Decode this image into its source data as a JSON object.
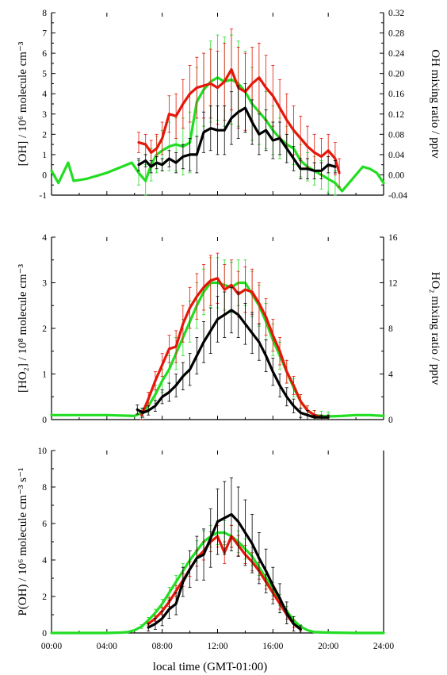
{
  "figure": {
    "xlabel": "local time (GMT-01:00)",
    "x_tick_labels": [
      "00:00",
      "04:00",
      "08:00",
      "12:00",
      "16:00",
      "20:00",
      "24:00"
    ],
    "colors": {
      "black": "#000000",
      "red": "#e3170a",
      "green": "#22dd22"
    }
  },
  "chart_data": [
    {
      "type": "line",
      "panel": "OH",
      "ylabel_left": "[OH] / 10⁶ molecule cm⁻³",
      "ylabel_right": "OH mixing ratio / pptv",
      "xlim": [
        0,
        24
      ],
      "ylim": [
        -1,
        8
      ],
      "y_ticks": [
        -1,
        0,
        1,
        2,
        3,
        4,
        5,
        6,
        7,
        8
      ],
      "y2lim": [
        -0.04,
        0.32
      ],
      "y2_ticks": [
        "-0.04",
        "0.00",
        "0.04",
        "0.08",
        "0.12",
        "0.16",
        "0.20",
        "0.24",
        "0.28",
        "0.32"
      ],
      "series": [
        {
          "color": "#22dd22",
          "x": [
            0,
            0.5,
            1.2,
            1.6,
            2.5,
            4,
            5.8,
            6.3,
            6.8,
            7.2,
            7.6,
            8,
            8.5,
            9,
            9.5,
            10,
            10.5,
            11,
            11.5,
            12,
            12.5,
            13,
            13.5,
            14,
            14.5,
            15,
            15.5,
            16,
            16.5,
            17,
            17.5,
            18,
            18.5,
            19,
            19.5,
            20,
            20.5,
            21,
            21.5,
            22,
            22.5,
            23,
            23.5,
            24
          ],
          "y": [
            0.2,
            -0.4,
            0.6,
            -0.3,
            -0.2,
            0.1,
            0.6,
            0.1,
            -0.3,
            0.5,
            1.0,
            1.2,
            1.4,
            1.5,
            1.4,
            1.6,
            3.6,
            4.2,
            4.6,
            4.8,
            4.6,
            4.7,
            4.5,
            4.1,
            3.5,
            3.1,
            2.7,
            2.2,
            1.8,
            1.5,
            1.3,
            0.7,
            0.4,
            0.2,
            0.0,
            -0.2,
            -0.4,
            -0.8,
            -0.4,
            0.0,
            0.4,
            0.3,
            0.1,
            -0.4
          ],
          "errors": [
            0,
            0,
            0,
            0,
            0,
            0,
            0,
            0.6,
            0.8,
            0.8,
            0.9,
            1.0,
            1.2,
            1.3,
            1.4,
            1.5,
            1.7,
            1.8,
            2.0,
            2.1,
            2.2,
            2.2,
            2.1,
            2.0,
            1.8,
            1.6,
            1.4,
            1.2,
            1.0,
            0.9,
            0.8,
            0.8,
            0.7,
            0.7,
            0.7,
            0.7,
            0.6,
            0,
            0,
            0,
            0,
            0,
            0,
            0
          ]
        },
        {
          "color": "#e3170a",
          "x": [
            6.3,
            6.8,
            7.2,
            7.6,
            8,
            8.5,
            9,
            9.5,
            10,
            10.5,
            11,
            11.5,
            12,
            12.5,
            13,
            13.5,
            14,
            14.5,
            15,
            15.5,
            16,
            16.5,
            17,
            17.5,
            18,
            18.5,
            19,
            19.5,
            20,
            20.5,
            20.8
          ],
          "y": [
            1.6,
            1.5,
            1.1,
            1.3,
            1.8,
            3.0,
            2.9,
            3.5,
            4.0,
            4.3,
            4.4,
            4.5,
            4.3,
            4.6,
            5.2,
            4.3,
            4.1,
            4.5,
            4.8,
            4.3,
            3.9,
            3.3,
            2.7,
            2.2,
            1.8,
            1.4,
            1.1,
            0.9,
            1.2,
            0.8,
            0.1
          ],
          "errors": [
            0.5,
            0.5,
            0.6,
            0.7,
            0.8,
            0.9,
            1.1,
            1.2,
            1.4,
            1.5,
            1.6,
            1.7,
            1.8,
            1.9,
            2.0,
            2.0,
            1.9,
            1.8,
            1.7,
            1.6,
            1.5,
            1.4,
            1.3,
            1.2,
            1.1,
            1.0,
            0.9,
            0.9,
            0.8,
            0.8,
            0.7
          ]
        },
        {
          "color": "#000000",
          "x": [
            6.3,
            6.8,
            7.2,
            7.6,
            8,
            8.5,
            9,
            9.5,
            10,
            10.5,
            11,
            11.5,
            12,
            12.5,
            13,
            13.5,
            14,
            14.5,
            15,
            15.5,
            16,
            16.5,
            17,
            17.5,
            18,
            18.5,
            19,
            19.5,
            20,
            20.5
          ],
          "y": [
            0.5,
            0.7,
            0.4,
            0.6,
            0.5,
            0.8,
            0.6,
            0.9,
            1.0,
            1.0,
            2.1,
            2.3,
            2.2,
            2.2,
            2.8,
            3.1,
            3.3,
            2.6,
            2.0,
            2.2,
            1.7,
            1.8,
            1.3,
            0.8,
            0.3,
            0.3,
            0.2,
            0.2,
            0.5,
            0.4
          ],
          "errors": [
            0.3,
            0.3,
            0.3,
            0.3,
            0.3,
            0.4,
            0.5,
            0.6,
            0.8,
            0.9,
            1.0,
            1.1,
            1.2,
            1.2,
            1.3,
            1.3,
            1.2,
            1.1,
            1.0,
            1.0,
            0.9,
            0.8,
            0.7,
            0.6,
            0.5,
            0.5,
            0.4,
            0.4,
            0.4,
            0.3
          ]
        }
      ]
    },
    {
      "type": "line",
      "panel": "HO2",
      "ylabel_left": "[HO₂] / 10⁸ molecule cm⁻³",
      "ylabel_right": "HO₂ mixing ratio / pptv",
      "xlim": [
        0,
        24
      ],
      "ylim": [
        0,
        4
      ],
      "y_ticks": [
        0,
        1,
        2,
        3,
        4
      ],
      "y2lim": [
        0,
        16
      ],
      "y2_ticks": [
        "0",
        "4",
        "8",
        "12",
        "16"
      ],
      "series": [
        {
          "color": "#22dd22",
          "x": [
            0,
            2,
            4,
            6,
            6.5,
            7,
            7.5,
            8,
            8.5,
            9,
            9.5,
            10,
            10.5,
            11,
            11.5,
            12,
            12.5,
            13,
            13.5,
            14,
            14.5,
            15,
            15.5,
            16,
            16.5,
            17,
            17.5,
            18,
            18.5,
            19,
            19.5,
            20,
            21,
            22,
            23,
            24
          ],
          "y": [
            0.1,
            0.1,
            0.1,
            0.08,
            0.15,
            0.3,
            0.55,
            0.85,
            1.1,
            1.45,
            1.8,
            2.15,
            2.5,
            2.8,
            3.0,
            3.0,
            2.95,
            2.9,
            3.0,
            3.0,
            2.75,
            2.5,
            2.15,
            1.75,
            1.4,
            1.05,
            0.7,
            0.4,
            0.2,
            0.1,
            0.08,
            0.07,
            0.08,
            0.1,
            0.1,
            0.08
          ],
          "errors": [
            0,
            0,
            0,
            0,
            0.1,
            0.15,
            0.2,
            0.25,
            0.3,
            0.35,
            0.4,
            0.45,
            0.5,
            0.5,
            0.55,
            0.55,
            0.55,
            0.55,
            0.5,
            0.5,
            0.5,
            0.45,
            0.4,
            0.35,
            0.3,
            0.25,
            0.2,
            0.15,
            0.1,
            0.1,
            0.1,
            0.1,
            0,
            0,
            0,
            0
          ]
        },
        {
          "color": "#e3170a",
          "x": [
            6.5,
            7,
            7.5,
            8,
            8.5,
            9,
            9.5,
            10,
            10.5,
            11,
            11.5,
            12,
            12.5,
            13,
            13.5,
            14,
            14.5,
            15,
            15.5,
            16,
            16.5,
            17,
            17.5,
            18,
            18.5,
            19,
            19.5,
            20
          ],
          "y": [
            0.1,
            0.45,
            0.85,
            1.2,
            1.55,
            1.6,
            2.1,
            2.45,
            2.7,
            2.9,
            3.05,
            3.1,
            2.85,
            2.95,
            2.75,
            2.85,
            2.8,
            2.55,
            2.25,
            1.85,
            1.5,
            1.05,
            0.75,
            0.4,
            0.2,
            0.1,
            0.05,
            0.05
          ],
          "errors": [
            0.1,
            0.15,
            0.2,
            0.25,
            0.3,
            0.35,
            0.4,
            0.45,
            0.5,
            0.5,
            0.55,
            0.55,
            0.55,
            0.55,
            0.5,
            0.5,
            0.5,
            0.45,
            0.4,
            0.35,
            0.3,
            0.25,
            0.2,
            0.15,
            0.1,
            0.1,
            0.05,
            0.05
          ]
        },
        {
          "color": "#000000",
          "x": [
            6.2,
            6.6,
            7,
            7.5,
            8,
            8.5,
            9,
            9.5,
            10,
            10.5,
            11,
            11.5,
            12,
            12.5,
            13,
            13.5,
            14,
            14.5,
            15,
            15.5,
            16,
            16.5,
            17,
            17.5,
            18,
            18.5,
            19,
            19.5,
            20
          ],
          "y": [
            0.22,
            0.15,
            0.2,
            0.3,
            0.5,
            0.6,
            0.75,
            0.95,
            1.1,
            1.4,
            1.7,
            1.95,
            2.2,
            2.3,
            2.4,
            2.3,
            2.1,
            1.9,
            1.7,
            1.4,
            1.05,
            0.75,
            0.5,
            0.3,
            0.15,
            0.1,
            0.05,
            0.05,
            0.05
          ],
          "errors": [
            0.1,
            0.1,
            0.1,
            0.12,
            0.15,
            0.2,
            0.25,
            0.3,
            0.35,
            0.4,
            0.45,
            0.5,
            0.5,
            0.5,
            0.5,
            0.5,
            0.45,
            0.45,
            0.4,
            0.35,
            0.3,
            0.25,
            0.2,
            0.15,
            0.1,
            0.1,
            0.05,
            0.05,
            0.05
          ]
        }
      ]
    },
    {
      "type": "line",
      "panel": "P(OH)",
      "ylabel_left": "P(OH) / 10⁶ molecule cm⁻³ s⁻¹",
      "xlim": [
        0,
        24
      ],
      "ylim": [
        0,
        10
      ],
      "y_ticks": [
        0,
        2,
        4,
        6,
        8,
        10
      ],
      "series": [
        {
          "color": "#22dd22",
          "x": [
            0,
            2,
            4,
            5,
            5.5,
            6,
            6.5,
            7,
            7.5,
            8,
            8.5,
            9,
            9.5,
            10,
            10.5,
            11,
            11.5,
            12,
            12.5,
            13,
            13.5,
            14,
            14.5,
            15,
            15.5,
            16,
            16.5,
            17,
            17.5,
            18,
            18.5,
            19,
            20,
            22,
            24
          ],
          "y": [
            0,
            0,
            0,
            0.02,
            0.05,
            0.15,
            0.35,
            0.7,
            1.1,
            1.6,
            2.2,
            2.8,
            3.4,
            4.0,
            4.5,
            5.0,
            5.3,
            5.5,
            5.5,
            5.3,
            5.0,
            4.6,
            4.2,
            3.6,
            3.0,
            2.4,
            1.8,
            1.2,
            0.7,
            0.35,
            0.15,
            0.05,
            0.02,
            0,
            0
          ],
          "errors": [
            0,
            0,
            0,
            0,
            0,
            0,
            0.1,
            0.15,
            0.2,
            0.25,
            0.3,
            0.35,
            0.4,
            0.5,
            0.55,
            0.6,
            0.6,
            0.65,
            0.65,
            0.6,
            0.6,
            0.55,
            0.5,
            0.45,
            0.4,
            0.35,
            0.3,
            0.25,
            0.2,
            0.1,
            0,
            0,
            0,
            0,
            0
          ]
        },
        {
          "color": "#e3170a",
          "x": [
            7,
            7.5,
            8,
            8.5,
            9,
            9.5,
            10,
            10.5,
            11,
            11.5,
            12,
            12.5,
            13,
            13.5,
            14,
            14.5,
            15,
            15.5,
            16,
            16.5,
            17,
            17.5,
            18
          ],
          "y": [
            0.5,
            0.8,
            1.2,
            1.7,
            2.3,
            2.9,
            3.5,
            4.1,
            4.5,
            5.0,
            5.3,
            4.4,
            5.3,
            4.8,
            4.3,
            3.9,
            3.4,
            2.8,
            2.2,
            1.6,
            1.0,
            0.5,
            0.2
          ],
          "errors": [
            0.1,
            0.15,
            0.2,
            0.25,
            0.3,
            0.35,
            0.4,
            0.45,
            0.5,
            0.55,
            0.6,
            0.6,
            0.6,
            0.55,
            0.5,
            0.5,
            0.45,
            0.4,
            0.35,
            0.3,
            0.25,
            0.2,
            0.1
          ]
        },
        {
          "color": "#000000",
          "x": [
            7,
            7.5,
            8,
            8.5,
            9,
            9.5,
            10,
            10.5,
            11,
            11.5,
            12,
            12.5,
            13,
            13.5,
            14,
            14.5,
            15,
            15.5,
            16,
            16.5,
            17,
            17.5,
            18
          ],
          "y": [
            0.3,
            0.5,
            0.8,
            1.3,
            1.6,
            2.8,
            3.5,
            4.1,
            4.3,
            5.2,
            6.1,
            6.3,
            6.5,
            6.1,
            5.5,
            4.9,
            4.1,
            3.4,
            2.6,
            1.9,
            1.1,
            0.5,
            0.2
          ],
          "errors": [
            0.2,
            0.3,
            0.4,
            0.5,
            0.6,
            0.8,
            1.0,
            1.2,
            1.4,
            1.6,
            1.8,
            2.0,
            2.0,
            1.9,
            1.8,
            1.6,
            1.4,
            1.2,
            1.0,
            0.8,
            0.6,
            0.4,
            0.2
          ]
        }
      ]
    }
  ]
}
